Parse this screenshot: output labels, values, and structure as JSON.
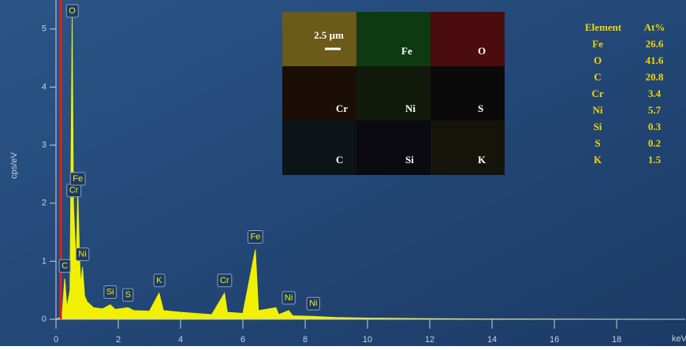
{
  "chart_data": {
    "type": "area",
    "ylabel": "cps/eV",
    "xlabel": "keV",
    "color": "#f0f000",
    "x": [
      0,
      0.1,
      0.2,
      0.28,
      0.35,
      0.45,
      0.52,
      0.56,
      0.6,
      0.65,
      0.7,
      0.76,
      0.8,
      0.85,
      0.92,
      1.0,
      1.2,
      1.5,
      1.74,
      1.9,
      2.31,
      2.5,
      3.0,
      3.31,
      3.45,
      4.0,
      4.5,
      5.0,
      5.41,
      5.5,
      6.0,
      6.4,
      6.5,
      7.06,
      7.15,
      7.47,
      7.6,
      8.26,
      9,
      10,
      12,
      14,
      20
    ],
    "values": [
      0,
      0.02,
      0.1,
      0.7,
      0.2,
      0.5,
      5.2,
      2.0,
      1.5,
      0.9,
      2.2,
      1.0,
      0.6,
      0.9,
      0.4,
      0.3,
      0.2,
      0.18,
      0.25,
      0.17,
      0.2,
      0.15,
      0.14,
      0.45,
      0.15,
      0.12,
      0.1,
      0.08,
      0.45,
      0.12,
      0.1,
      1.2,
      0.15,
      0.2,
      0.08,
      0.15,
      0.06,
      0.05,
      0.03,
      0.02,
      0.01,
      0.005,
      0
    ],
    "xlim": [
      0,
      20.2
    ],
    "xticks": [
      0,
      2,
      4,
      6,
      8,
      10,
      12,
      14,
      16,
      18
    ],
    "ylim": [
      0,
      5.5
    ],
    "yticks": [
      0,
      1,
      2,
      3,
      4,
      5
    ],
    "peaks": [
      {
        "label": "C",
        "x": 0.28
      },
      {
        "label": "O",
        "x": 0.52
      },
      {
        "label": "Cr",
        "x": 0.57
      },
      {
        "label": "Fe",
        "x": 0.7
      },
      {
        "label": "Ni",
        "x": 0.85
      },
      {
        "label": "Si",
        "x": 1.74
      },
      {
        "label": "S",
        "x": 2.31
      },
      {
        "label": "K",
        "x": 3.31
      },
      {
        "label": "Cr",
        "x": 5.41
      },
      {
        "label": "Fe",
        "x": 6.4
      },
      {
        "label": "Ni",
        "x": 7.47
      },
      {
        "label": "Ni",
        "x": 8.26
      }
    ]
  },
  "inset": {
    "scale": "2.5 µm",
    "labels": [
      "Fe",
      "O",
      "Cr",
      "Ni",
      "S",
      "C",
      "Si",
      "K"
    ]
  },
  "table": {
    "header": [
      "Element",
      "At%"
    ],
    "rows": [
      [
        "Fe",
        "26.6"
      ],
      [
        "O",
        "41.6"
      ],
      [
        "C",
        "20.8"
      ],
      [
        "Cr",
        "3.4"
      ],
      [
        "Ni",
        "5.7"
      ],
      [
        "Si",
        "0.3"
      ],
      [
        "S",
        "0.2"
      ],
      [
        "K",
        "1.5"
      ]
    ]
  }
}
